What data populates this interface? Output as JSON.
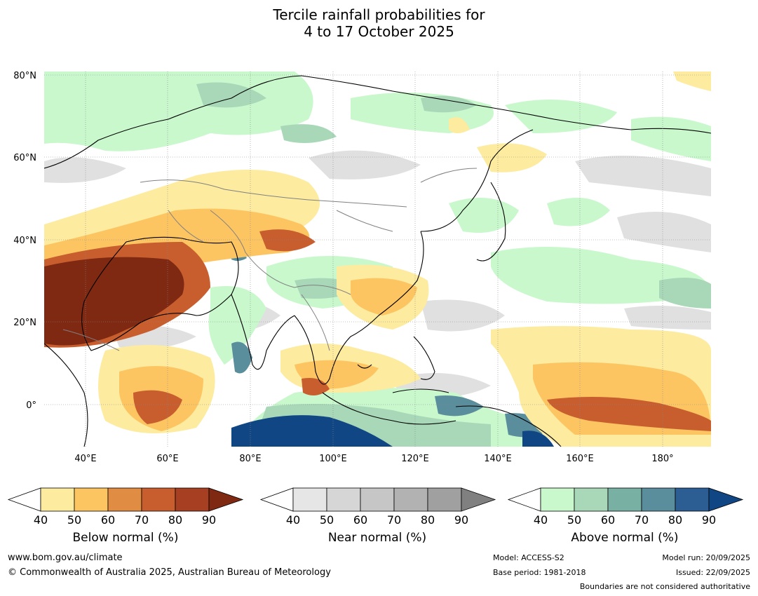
{
  "title": {
    "line1": "Tercile rainfall probabilities for",
    "line2": "4 to 17 October 2025"
  },
  "map": {
    "lat_labels": [
      "80°N",
      "60°N",
      "40°N",
      "20°N",
      "0°"
    ],
    "lon_labels": [
      "40°E",
      "60°E",
      "80°E",
      "100°E",
      "120°E",
      "140°E",
      "160°E",
      "180°"
    ],
    "lat_range": [
      -10,
      80
    ],
    "lon_range": [
      30,
      192
    ]
  },
  "colorbars": [
    {
      "name": "below",
      "label": "Below normal (%)",
      "ticks": [
        "40",
        "50",
        "60",
        "70",
        "80",
        "90"
      ],
      "colors": [
        "#fdeb9f",
        "#fdc562",
        "#e08c42",
        "#c85e2e",
        "#a73f22",
        "#7f2812"
      ],
      "under": "#ffffff"
    },
    {
      "name": "near",
      "label": "Near normal (%)",
      "ticks": [
        "40",
        "50",
        "60",
        "70",
        "80",
        "90"
      ],
      "colors": [
        "#e6e6e6",
        "#d6d6d6",
        "#c6c6c6",
        "#b2b2b2",
        "#a0a0a0",
        "#808080"
      ],
      "under": "#ffffff"
    },
    {
      "name": "above",
      "label": "Above normal (%)",
      "ticks": [
        "40",
        "50",
        "60",
        "70",
        "80",
        "90"
      ],
      "colors": [
        "#c8f8cc",
        "#a8d8b8",
        "#78b0a4",
        "#5a8e9c",
        "#2c5e94",
        "#104684"
      ],
      "under": "#ffffff"
    }
  ],
  "footer": {
    "website": "www.bom.gov.au/climate",
    "copyright": "© Commonwealth of Australia 2025, Australian Bureau of Meteorology",
    "model": "Model: ACCESS-S2",
    "base_period": "Base period: 1981-2018",
    "model_run": "Model run: 20/09/2025",
    "issued": "Issued: 22/09/2025",
    "disclaimer": "Boundaries are not considered authoritative"
  }
}
